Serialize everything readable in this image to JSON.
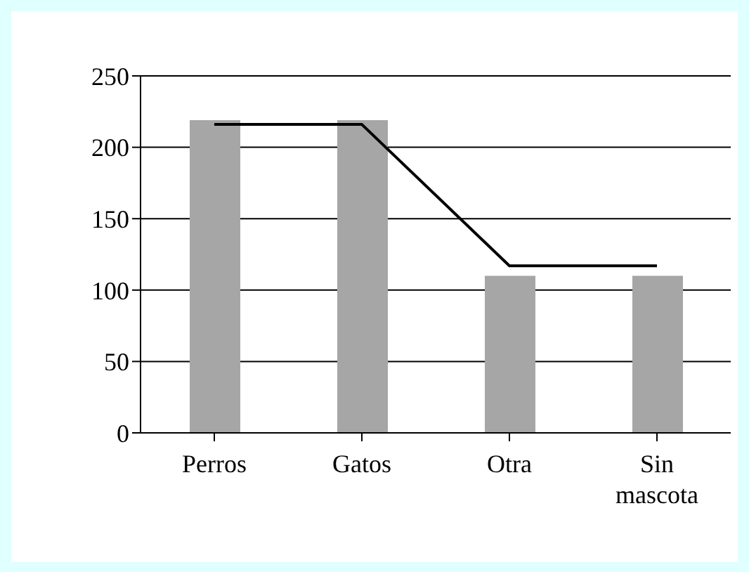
{
  "chart_data": {
    "type": "bar",
    "categories": [
      "Perros",
      "Gatos",
      "Otra",
      "Sin mascota"
    ],
    "series": [
      {
        "color": "#a6a6a6",
        "values": [
          219,
          219,
          110,
          110
        ]
      },
      {
        "type": "line",
        "color": "#000000",
        "values": [
          216,
          216,
          117,
          117
        ]
      }
    ],
    "ylim": [
      0,
      250
    ],
    "yticks": [
      0,
      50,
      100,
      150,
      200,
      250
    ],
    "grid": "y",
    "marker": "none",
    "legend": false
  }
}
